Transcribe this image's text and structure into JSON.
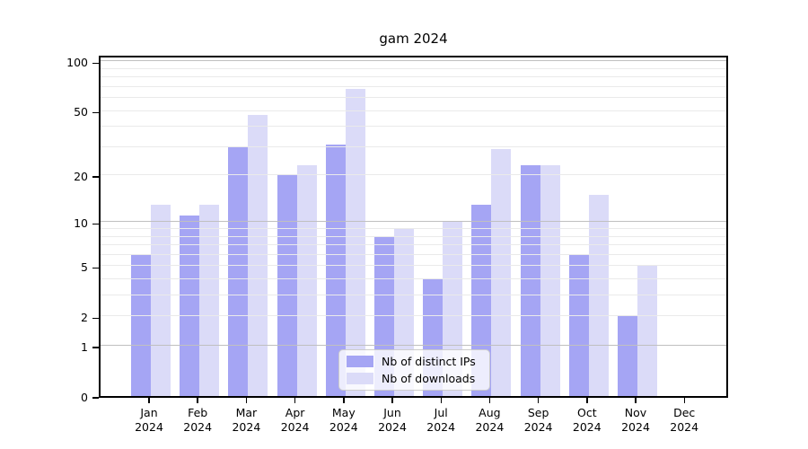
{
  "chart_data": {
    "type": "bar",
    "title": "gam 2024",
    "categories": [
      "Jan",
      "Feb",
      "Mar",
      "Apr",
      "May",
      "Jun",
      "Jul",
      "Aug",
      "Sep",
      "Oct",
      "Nov",
      "Dec"
    ],
    "year": "2024",
    "series": [
      {
        "name": "Nb of distinct IPs",
        "color": "#a5a5f4",
        "values": [
          6,
          11,
          30,
          20,
          31,
          8,
          4,
          13,
          23,
          6,
          2,
          0
        ]
      },
      {
        "name": "Nb of downloads",
        "color": "#dbdbf8",
        "values": [
          13,
          13,
          47,
          23,
          68,
          9,
          10,
          29,
          23,
          15,
          5,
          0
        ]
      }
    ],
    "xlabel": "",
    "ylabel": "",
    "scale": "log1p",
    "ylim": [
      0,
      111
    ],
    "yticks": [
      0,
      1,
      2,
      5,
      10,
      20,
      50,
      100
    ],
    "grid_minor": [
      2,
      3,
      4,
      5,
      6,
      7,
      8,
      9,
      20,
      30,
      40,
      50,
      60,
      70,
      80,
      90
    ],
    "grid_major": [
      1,
      10,
      100
    ],
    "grid": "horizontal",
    "legend_position": "bottom-center",
    "spine_color": "#000000",
    "grid_minor_color": "#eaeaea",
    "grid_major_color": "#c0c0c0"
  }
}
